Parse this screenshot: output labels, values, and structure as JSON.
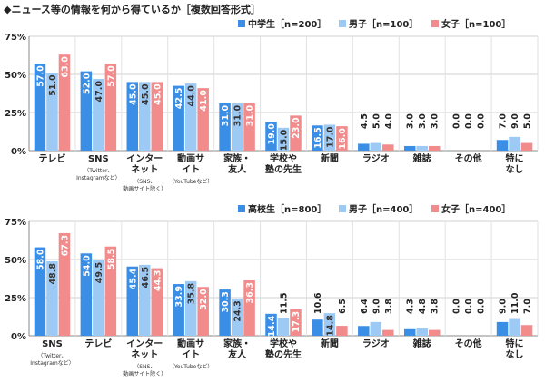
{
  "figure_title": "◆ニュース等の情報を何から得ているか［複数回答形式］",
  "colors": {
    "s1": "#3a8ee6",
    "s2": "#9dc9f5",
    "s3": "#f28b8b"
  },
  "chart_data": [
    {
      "type": "bar",
      "ylim": [
        0,
        75
      ],
      "yticks": [
        "0%",
        "25%",
        "50%",
        "75%"
      ],
      "categories": [
        {
          "label": "テレビ",
          "sub": ""
        },
        {
          "label": "SNS",
          "sub": "（Twitter、Instagramなど）"
        },
        {
          "label": "インターネット",
          "sub": "（SNS、動画サイト除く）"
        },
        {
          "label": "動画サイト",
          "sub": "（YouTubeなど）"
        },
        {
          "label": "家族・友人",
          "sub": ""
        },
        {
          "label": "学校や塾の先生",
          "sub": ""
        },
        {
          "label": "新聞",
          "sub": ""
        },
        {
          "label": "ラジオ",
          "sub": ""
        },
        {
          "label": "雑誌",
          "sub": ""
        },
        {
          "label": "その他",
          "sub": ""
        },
        {
          "label": "特になし",
          "sub": ""
        }
      ],
      "series": [
        {
          "name": "中学生［n=200］",
          "values": [
            57.0,
            52.0,
            45.0,
            42.5,
            31.0,
            19.0,
            16.5,
            4.5,
            3.0,
            0.0,
            7.0
          ]
        },
        {
          "name": "男子［n=100］",
          "values": [
            51.0,
            47.0,
            45.0,
            44.0,
            31.0,
            15.0,
            17.0,
            5.0,
            3.0,
            0.0,
            9.0
          ]
        },
        {
          "name": "女子［n=100］",
          "values": [
            63.0,
            57.0,
            45.0,
            41.0,
            31.0,
            23.0,
            16.0,
            4.0,
            3.0,
            0.0,
            5.0
          ]
        }
      ]
    },
    {
      "type": "bar",
      "ylim": [
        0,
        75
      ],
      "yticks": [
        "0%",
        "25%",
        "50%",
        "75%"
      ],
      "categories": [
        {
          "label": "SNS",
          "sub": "（Twitter、Instagramなど）"
        },
        {
          "label": "テレビ",
          "sub": ""
        },
        {
          "label": "インターネット",
          "sub": "（SNS、動画サイト除く）"
        },
        {
          "label": "動画サイト",
          "sub": "（YouTubeなど）"
        },
        {
          "label": "家族・友人",
          "sub": ""
        },
        {
          "label": "学校や塾の先生",
          "sub": ""
        },
        {
          "label": "新聞",
          "sub": ""
        },
        {
          "label": "ラジオ",
          "sub": ""
        },
        {
          "label": "雑誌",
          "sub": ""
        },
        {
          "label": "その他",
          "sub": ""
        },
        {
          "label": "特になし",
          "sub": ""
        }
      ],
      "series": [
        {
          "name": "高校生［n=800］",
          "values": [
            58.0,
            54.0,
            45.4,
            33.9,
            30.3,
            14.4,
            10.6,
            6.4,
            4.3,
            0.0,
            9.0
          ]
        },
        {
          "name": "男子［n=400］",
          "values": [
            48.8,
            49.5,
            46.5,
            35.8,
            24.3,
            11.5,
            14.8,
            9.0,
            4.8,
            0.0,
            11.0
          ]
        },
        {
          "name": "女子［n=400］",
          "values": [
            67.3,
            58.5,
            44.3,
            32.0,
            36.3,
            17.3,
            6.5,
            3.8,
            3.8,
            0.0,
            7.0
          ]
        }
      ]
    }
  ]
}
